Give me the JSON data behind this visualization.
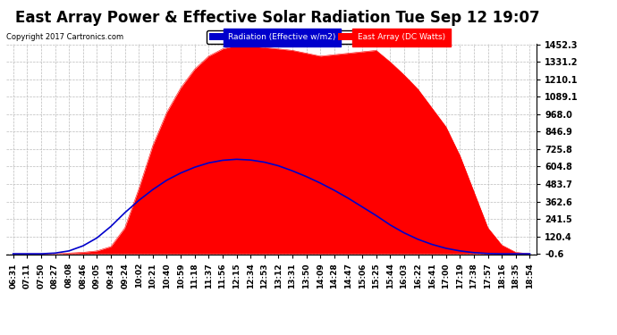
{
  "title": "East Array Power & Effective Solar Radiation Tue Sep 12 19:07",
  "copyright": "Copyright 2017 Cartronics.com",
  "y_tick_labels": [
    "1452.3",
    "1331.2",
    "1210.1",
    "1089.1",
    "968.0",
    "846.9",
    "725.8",
    "604.8",
    "483.7",
    "362.6",
    "241.5",
    "120.4",
    "-0.6"
  ],
  "y_tick_values": [
    1452.3,
    1331.2,
    1210.1,
    1089.1,
    968.0,
    846.9,
    725.8,
    604.8,
    483.7,
    362.6,
    241.5,
    120.4,
    -0.6
  ],
  "ylim_min": -0.6,
  "ylim_max": 1452.3,
  "x_tick_labels": [
    "06:31",
    "07:11",
    "07:50",
    "08:27",
    "08:08",
    "08:46",
    "09:05",
    "09:43",
    "09:24",
    "10:02",
    "10:21",
    "10:40",
    "10:59",
    "11:18",
    "11:37",
    "11:56",
    "12:15",
    "12:34",
    "12:53",
    "13:12",
    "13:31",
    "13:50",
    "14:09",
    "14:28",
    "14:47",
    "15:06",
    "15:25",
    "15:44",
    "16:03",
    "16:22",
    "16:41",
    "17:00",
    "17:19",
    "17:38",
    "17:57",
    "18:16",
    "18:35",
    "18:54"
  ],
  "background_color": "#ffffff",
  "grid_color": "#bbbbbb",
  "red_color": "#ff0000",
  "blue_color": "#0000cc",
  "title_fontsize": 12,
  "tick_fontsize": 7,
  "east_array": [
    0,
    0,
    0,
    0,
    5,
    10,
    20,
    50,
    180,
    450,
    750,
    980,
    1150,
    1280,
    1370,
    1420,
    1445,
    1440,
    1430,
    1420,
    1410,
    1390,
    1370,
    1380,
    1390,
    1400,
    1410,
    1330,
    1240,
    1140,
    1010,
    880,
    680,
    430,
    180,
    60,
    10,
    0
  ],
  "radiation": [
    0,
    0,
    0,
    5,
    20,
    55,
    110,
    190,
    285,
    370,
    445,
    510,
    560,
    600,
    630,
    648,
    655,
    650,
    635,
    610,
    575,
    535,
    490,
    440,
    385,
    325,
    265,
    200,
    145,
    100,
    65,
    38,
    20,
    8,
    2,
    0,
    0,
    0
  ]
}
